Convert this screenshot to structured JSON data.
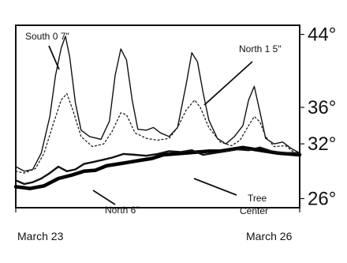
{
  "chart_data": {
    "type": "line",
    "title": "",
    "xlabel": "",
    "ylabel": "",
    "x_range": [
      0,
      100
    ],
    "y_range": [
      25,
      45
    ],
    "y_ticks": [
      "26°",
      "32°",
      "36°",
      "44°"
    ],
    "x_tick_labels": [
      {
        "label": "March 23",
        "x": 0
      },
      {
        "label": "March 26",
        "x": 100
      }
    ],
    "grid": false,
    "legend": "none",
    "series": [
      {
        "name": "South 0 7\"",
        "color": "#111111",
        "style": "solid",
        "width": 1.4,
        "points": [
          [
            0,
            29.5
          ],
          [
            3,
            29.0
          ],
          [
            6,
            29.2
          ],
          [
            9,
            31.0
          ],
          [
            12,
            35.0
          ],
          [
            14,
            39.5
          ],
          [
            16,
            42.5
          ],
          [
            17.5,
            43.8
          ],
          [
            19,
            41.5
          ],
          [
            21,
            36.5
          ],
          [
            23,
            33.5
          ],
          [
            26,
            32.8
          ],
          [
            30,
            32.5
          ],
          [
            33,
            34.5
          ],
          [
            35,
            39.5
          ],
          [
            37,
            42.4
          ],
          [
            39,
            41.2
          ],
          [
            41,
            36.8
          ],
          [
            43,
            33.6
          ],
          [
            46,
            33.5
          ],
          [
            48.5,
            33.8
          ],
          [
            51,
            33.2
          ],
          [
            54,
            32.8
          ],
          [
            57,
            33.8
          ],
          [
            60,
            38.5
          ],
          [
            62,
            42.0
          ],
          [
            64,
            41.0
          ],
          [
            66,
            37.6
          ],
          [
            68,
            34.6
          ],
          [
            71,
            32.6
          ],
          [
            74,
            32.0
          ],
          [
            77,
            32.8
          ],
          [
            80,
            34.0
          ],
          [
            82,
            36.8
          ],
          [
            84,
            38.3
          ],
          [
            86,
            35.5
          ],
          [
            88,
            32.6
          ],
          [
            91,
            32.0
          ],
          [
            94,
            32.2
          ],
          [
            97,
            31.5
          ],
          [
            100,
            31.0
          ]
        ]
      },
      {
        "name": "North 1 5\"",
        "color": "#222222",
        "style": "dotted",
        "width": 1.3,
        "points": [
          [
            0,
            29.0
          ],
          [
            3,
            28.8
          ],
          [
            7,
            29.3
          ],
          [
            10,
            31.0
          ],
          [
            13,
            34.0
          ],
          [
            16,
            36.8
          ],
          [
            18,
            37.5
          ],
          [
            20,
            35.8
          ],
          [
            23,
            32.8
          ],
          [
            27,
            31.7
          ],
          [
            31,
            32.0
          ],
          [
            34,
            33.4
          ],
          [
            37,
            35.4
          ],
          [
            39,
            35.2
          ],
          [
            42,
            33.2
          ],
          [
            46,
            32.6
          ],
          [
            50,
            32.4
          ],
          [
            54,
            32.6
          ],
          [
            57,
            33.8
          ],
          [
            60,
            35.7
          ],
          [
            63,
            36.8
          ],
          [
            65,
            36.0
          ],
          [
            68,
            33.8
          ],
          [
            72,
            32.2
          ],
          [
            76,
            31.8
          ],
          [
            79,
            32.4
          ],
          [
            82,
            34.0
          ],
          [
            84,
            35.0
          ],
          [
            86,
            34.4
          ],
          [
            88,
            32.8
          ],
          [
            91,
            31.7
          ],
          [
            95,
            31.8
          ],
          [
            100,
            30.6
          ]
        ]
      },
      {
        "name": "Tree Center",
        "color": "#000000",
        "style": "solid",
        "width": 4.5,
        "points": [
          [
            0,
            27.3
          ],
          [
            5,
            27.1
          ],
          [
            10,
            27.4
          ],
          [
            15,
            28.2
          ],
          [
            20,
            28.6
          ],
          [
            24,
            29.0
          ],
          [
            28,
            29.1
          ],
          [
            32,
            29.6
          ],
          [
            36,
            29.8
          ],
          [
            40,
            30.0
          ],
          [
            44,
            30.2
          ],
          [
            48,
            30.4
          ],
          [
            52,
            30.8
          ],
          [
            56,
            30.9
          ],
          [
            60,
            31.0
          ],
          [
            64,
            31.1
          ],
          [
            68,
            31.2
          ],
          [
            72,
            31.2
          ],
          [
            76,
            31.4
          ],
          [
            80,
            31.6
          ],
          [
            84,
            31.4
          ],
          [
            88,
            31.2
          ],
          [
            92,
            31.0
          ],
          [
            96,
            30.9
          ],
          [
            100,
            30.8
          ]
        ]
      },
      {
        "name": "North 6\"",
        "color": "#111111",
        "style": "solid",
        "width": 2.4,
        "points": [
          [
            0,
            28.0
          ],
          [
            3,
            27.6
          ],
          [
            6,
            27.8
          ],
          [
            9,
            28.2
          ],
          [
            12,
            28.8
          ],
          [
            15,
            29.5
          ],
          [
            18,
            29.0
          ],
          [
            21,
            29.2
          ],
          [
            24,
            29.8
          ],
          [
            27,
            30.0
          ],
          [
            30,
            30.2
          ],
          [
            34,
            30.5
          ],
          [
            38,
            30.9
          ],
          [
            42,
            30.8
          ],
          [
            46,
            30.7
          ],
          [
            50,
            30.9
          ],
          [
            54,
            31.2
          ],
          [
            58,
            31.1
          ],
          [
            62,
            31.3
          ],
          [
            66,
            30.8
          ],
          [
            70,
            31.0
          ],
          [
            74,
            31.2
          ],
          [
            78,
            31.4
          ],
          [
            82,
            31.3
          ],
          [
            86,
            31.6
          ],
          [
            90,
            31.2
          ],
          [
            94,
            31.0
          ],
          [
            100,
            31.0
          ]
        ]
      }
    ],
    "annotations": [
      {
        "text": "South 0 7\""
      },
      {
        "text": "North 1 5\""
      },
      {
        "text": "North 6\""
      },
      {
        "text": "Tree"
      },
      {
        "text": "Center"
      }
    ]
  }
}
